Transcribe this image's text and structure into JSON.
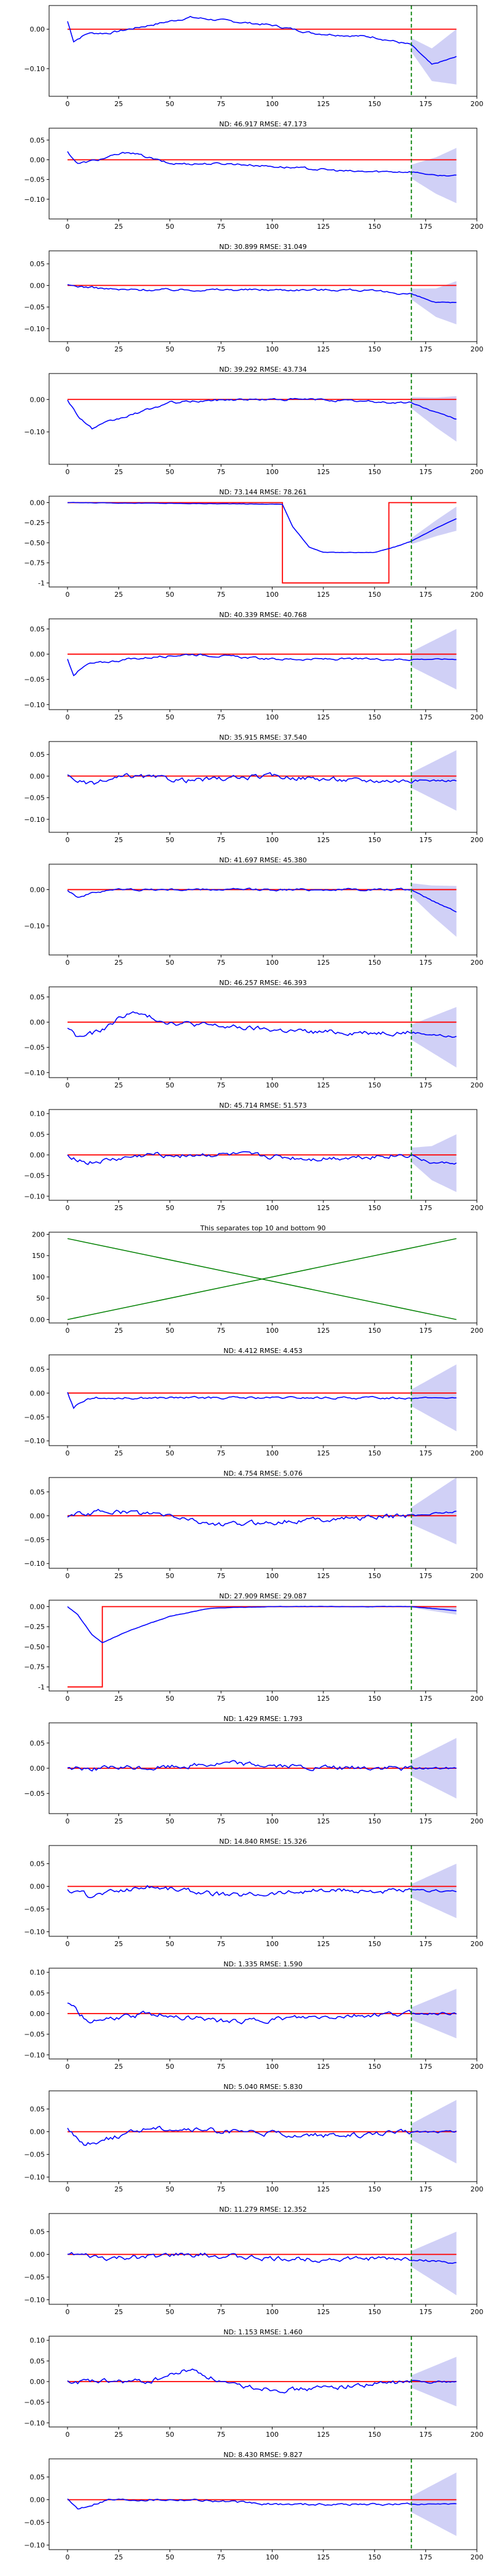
{
  "colors": {
    "forecast": "#0000ff",
    "interval": "#c8c8f5",
    "truth": "#ff0000",
    "split": "#008000",
    "divider_lines": "#008000"
  },
  "chart_data": [
    {
      "type": "line",
      "title": "",
      "xticks": [
        0,
        25,
        50,
        75,
        100,
        125,
        150,
        175,
        200
      ],
      "yticks": [
        0.0,
        -0.1
      ],
      "ylim": [
        -0.17,
        0.06
      ],
      "forecast_start": 168,
      "truth_level": 0.0,
      "interval_halfwidth": 0.07,
      "shape": "dip_end",
      "keypoints": [
        [
          0,
          0.02
        ],
        [
          3,
          -0.03
        ],
        [
          10,
          -0.01
        ],
        [
          20,
          -0.01
        ],
        [
          40,
          0.01
        ],
        [
          60,
          0.03
        ],
        [
          80,
          0.02
        ],
        [
          100,
          0.01
        ],
        [
          120,
          -0.01
        ],
        [
          150,
          -0.02
        ],
        [
          168,
          -0.04
        ],
        [
          178,
          -0.09
        ],
        [
          190,
          -0.07
        ]
      ]
    },
    {
      "type": "line",
      "title": "ND:  46.917 RMSE:  47.173",
      "xticks": [
        0,
        25,
        50,
        75,
        100,
        125,
        150,
        175,
        200
      ],
      "yticks": [
        0.05,
        0.0,
        -0.05,
        -0.1
      ],
      "ylim": [
        -0.15,
        0.08
      ],
      "forecast_start": 168,
      "truth_level": 0.0,
      "interval_halfwidth": 0.07,
      "shape": "wavy",
      "keypoints": [
        [
          0,
          0.02
        ],
        [
          5,
          -0.01
        ],
        [
          15,
          0.0
        ],
        [
          30,
          0.02
        ],
        [
          50,
          -0.01
        ],
        [
          80,
          -0.01
        ],
        [
          110,
          -0.02
        ],
        [
          140,
          -0.03
        ],
        [
          168,
          -0.03
        ],
        [
          180,
          -0.04
        ],
        [
          190,
          -0.04
        ]
      ]
    },
    {
      "type": "line",
      "title": "ND:  30.899 RMSE:  31.049",
      "xticks": [
        0,
        25,
        50,
        75,
        100,
        125,
        150,
        175,
        200
      ],
      "yticks": [
        0.05,
        0.0,
        -0.05,
        -0.1
      ],
      "ylim": [
        -0.13,
        0.08
      ],
      "forecast_start": 168,
      "truth_level": 0.0,
      "interval_halfwidth": 0.05,
      "shape": "flat",
      "keypoints": [
        [
          0,
          0.0
        ],
        [
          25,
          -0.01
        ],
        [
          60,
          -0.01
        ],
        [
          100,
          -0.01
        ],
        [
          140,
          -0.01
        ],
        [
          168,
          -0.02
        ],
        [
          180,
          -0.04
        ],
        [
          190,
          -0.04
        ]
      ]
    },
    {
      "type": "line",
      "title": "ND:  39.292 RMSE:  43.734",
      "xticks": [
        0,
        25,
        50,
        75,
        100,
        125,
        150,
        175,
        200
      ],
      "yticks": [
        0.0,
        -0.1
      ],
      "ylim": [
        -0.2,
        0.08
      ],
      "forecast_start": 168,
      "truth_level": 0.0,
      "interval_halfwidth": 0.07,
      "shape": "trough",
      "keypoints": [
        [
          0,
          0.0
        ],
        [
          5,
          -0.05
        ],
        [
          12,
          -0.09
        ],
        [
          20,
          -0.07
        ],
        [
          35,
          -0.04
        ],
        [
          50,
          -0.01
        ],
        [
          80,
          0.0
        ],
        [
          120,
          0.0
        ],
        [
          160,
          -0.01
        ],
        [
          168,
          -0.01
        ],
        [
          180,
          -0.04
        ],
        [
          190,
          -0.06
        ]
      ]
    },
    {
      "type": "line",
      "title": "ND:  73.144 RMSE:  78.261",
      "xticks": [
        0,
        25,
        50,
        75,
        100,
        125,
        150,
        175,
        200
      ],
      "yticks": [
        0.0,
        -0.25,
        -0.5,
        -0.75,
        -1.0
      ],
      "ylim": [
        -1.05,
        0.08
      ],
      "forecast_start": 168,
      "truth_steps": [
        [
          0,
          0.0
        ],
        [
          105,
          0.0
        ],
        [
          105,
          -1.0
        ],
        [
          157,
          -1.0
        ],
        [
          157,
          0.0
        ],
        [
          168,
          0.0
        ]
      ],
      "interval_halfwidth": 0.15,
      "shape": "step",
      "keypoints": [
        [
          0,
          0.0
        ],
        [
          105,
          -0.02
        ],
        [
          110,
          -0.3
        ],
        [
          118,
          -0.55
        ],
        [
          125,
          -0.62
        ],
        [
          150,
          -0.62
        ],
        [
          160,
          -0.55
        ],
        [
          168,
          -0.48
        ],
        [
          180,
          -0.32
        ],
        [
          190,
          -0.2
        ]
      ]
    },
    {
      "type": "line",
      "title": "ND:  40.339 RMSE:  40.768",
      "xticks": [
        0,
        25,
        50,
        75,
        100,
        125,
        150,
        175,
        200
      ],
      "yticks": [
        0.05,
        0.0,
        -0.05,
        -0.1
      ],
      "ylim": [
        -0.11,
        0.07
      ],
      "forecast_start": 168,
      "truth_level": 0.0,
      "interval_halfwidth": 0.06,
      "shape": "flat",
      "keypoints": [
        [
          0,
          -0.01
        ],
        [
          3,
          -0.04
        ],
        [
          10,
          -0.02
        ],
        [
          30,
          -0.01
        ],
        [
          60,
          0.0
        ],
        [
          100,
          -0.01
        ],
        [
          130,
          -0.01
        ],
        [
          168,
          -0.01
        ],
        [
          190,
          -0.01
        ]
      ]
    },
    {
      "type": "line",
      "title": "ND:  35.915 RMSE:  37.540",
      "xticks": [
        0,
        25,
        50,
        75,
        100,
        125,
        150,
        175,
        200
      ],
      "yticks": [
        0.05,
        0.0,
        -0.05,
        -0.1
      ],
      "ylim": [
        -0.13,
        0.08
      ],
      "forecast_start": 168,
      "truth_level": 0.0,
      "interval_halfwidth": 0.07,
      "shape": "noisy",
      "keypoints": [
        [
          0,
          0.0
        ],
        [
          10,
          -0.02
        ],
        [
          30,
          0.0
        ],
        [
          60,
          -0.01
        ],
        [
          100,
          0.0
        ],
        [
          140,
          -0.01
        ],
        [
          168,
          -0.01
        ],
        [
          190,
          -0.01
        ]
      ]
    },
    {
      "type": "line",
      "title": "ND:  41.697 RMSE:  45.380",
      "xticks": [
        0,
        25,
        50,
        75,
        100,
        125,
        150,
        175,
        200
      ],
      "yticks": [
        0.0,
        -0.1
      ],
      "ylim": [
        -0.18,
        0.07
      ],
      "forecast_start": 168,
      "truth_level": 0.0,
      "interval_halfwidth": 0.07,
      "shape": "flat",
      "keypoints": [
        [
          0,
          0.0
        ],
        [
          5,
          -0.02
        ],
        [
          20,
          0.0
        ],
        [
          60,
          0.0
        ],
        [
          100,
          0.0
        ],
        [
          140,
          0.0
        ],
        [
          168,
          0.0
        ],
        [
          178,
          -0.03
        ],
        [
          190,
          -0.06
        ]
      ]
    },
    {
      "type": "line",
      "title": "ND:  46.257 RMSE:  46.393",
      "xticks": [
        0,
        25,
        50,
        75,
        100,
        125,
        150,
        175,
        200
      ],
      "yticks": [
        0.05,
        0.0,
        -0.05,
        -0.1
      ],
      "ylim": [
        -0.11,
        0.07
      ],
      "forecast_start": 168,
      "truth_level": 0.0,
      "interval_halfwidth": 0.06,
      "shape": "noisy",
      "keypoints": [
        [
          0,
          -0.01
        ],
        [
          5,
          -0.03
        ],
        [
          15,
          -0.02
        ],
        [
          30,
          0.02
        ],
        [
          50,
          0.0
        ],
        [
          80,
          -0.01
        ],
        [
          120,
          -0.02
        ],
        [
          168,
          -0.02
        ],
        [
          190,
          -0.03
        ]
      ]
    },
    {
      "type": "line",
      "title": "ND:  45.714 RMSE:  51.573",
      "xticks": [
        0,
        25,
        50,
        75,
        100,
        125,
        150,
        175,
        200
      ],
      "yticks": [
        0.1,
        0.05,
        0.0,
        -0.05,
        -0.1
      ],
      "ylim": [
        -0.11,
        0.11
      ],
      "forecast_start": 168,
      "truth_level": 0.0,
      "interval_halfwidth": 0.07,
      "shape": "noisy",
      "keypoints": [
        [
          0,
          0.0
        ],
        [
          10,
          -0.02
        ],
        [
          40,
          0.0
        ],
        [
          80,
          0.0
        ],
        [
          120,
          -0.01
        ],
        [
          168,
          0.0
        ],
        [
          178,
          -0.02
        ],
        [
          190,
          -0.02
        ]
      ]
    },
    {
      "type": "line",
      "title": "This separates top 10 and bottom 90",
      "xticks": [
        0,
        25,
        50,
        75,
        100,
        125,
        150,
        175,
        200
      ],
      "yticks": [
        200,
        150,
        100,
        50,
        0
      ],
      "ylim": [
        -8,
        205
      ],
      "divider": true,
      "lines": [
        [
          [
            0,
            0
          ],
          [
            190,
            190
          ]
        ],
        [
          [
            0,
            190
          ],
          [
            190,
            0
          ]
        ]
      ]
    },
    {
      "type": "line",
      "title": "ND:  4.412 RMSE:  4.453",
      "xticks": [
        0,
        25,
        50,
        75,
        100,
        125,
        150,
        175,
        200
      ],
      "yticks": [
        0.05,
        0.0,
        -0.05,
        -0.1
      ],
      "ylim": [
        -0.11,
        0.08
      ],
      "forecast_start": 168,
      "truth_level": 0.0,
      "interval_halfwidth": 0.07,
      "shape": "flat",
      "keypoints": [
        [
          0,
          0.0
        ],
        [
          3,
          -0.03
        ],
        [
          10,
          -0.01
        ],
        [
          40,
          -0.01
        ],
        [
          100,
          -0.01
        ],
        [
          168,
          -0.01
        ],
        [
          190,
          -0.01
        ]
      ]
    },
    {
      "type": "line",
      "title": "ND:  4.754 RMSE:  5.076",
      "xticks": [
        0,
        25,
        50,
        75,
        100,
        125,
        150,
        175,
        200
      ],
      "yticks": [
        0.05,
        0.0,
        -0.05,
        -0.1
      ],
      "ylim": [
        -0.11,
        0.08
      ],
      "forecast_start": 168,
      "truth_level": 0.0,
      "interval_halfwidth": 0.07,
      "shape": "noisy",
      "keypoints": [
        [
          0,
          0.0
        ],
        [
          20,
          0.01
        ],
        [
          50,
          0.0
        ],
        [
          75,
          -0.02
        ],
        [
          110,
          -0.01
        ],
        [
          168,
          0.0
        ],
        [
          190,
          0.01
        ]
      ]
    },
    {
      "type": "line",
      "title": "ND:  27.909 RMSE:  29.087",
      "xticks": [
        0,
        25,
        50,
        75,
        100,
        125,
        150,
        175,
        200
      ],
      "yticks": [
        0.0,
        -0.25,
        -0.5,
        -0.75,
        -1.0
      ],
      "ylim": [
        -1.05,
        0.08
      ],
      "forecast_start": 168,
      "truth_steps": [
        [
          0,
          -1.0
        ],
        [
          17,
          -1.0
        ],
        [
          17,
          0.0
        ],
        [
          168,
          0.0
        ]
      ],
      "interval_halfwidth": 0.05,
      "shape": "step",
      "keypoints": [
        [
          0,
          0.0
        ],
        [
          5,
          -0.1
        ],
        [
          12,
          -0.35
        ],
        [
          17,
          -0.45
        ],
        [
          30,
          -0.3
        ],
        [
          50,
          -0.12
        ],
        [
          70,
          -0.02
        ],
        [
          100,
          0.0
        ],
        [
          168,
          0.0
        ],
        [
          190,
          -0.05
        ]
      ]
    },
    {
      "type": "line",
      "title": "ND:  1.429 RMSE:  1.793",
      "xticks": [
        0,
        25,
        50,
        75,
        100,
        125,
        150,
        175,
        200
      ],
      "yticks": [
        0.05,
        0.0,
        -0.05
      ],
      "ylim": [
        -0.09,
        0.09
      ],
      "forecast_start": 168,
      "truth_level": 0.0,
      "interval_halfwidth": 0.06,
      "shape": "noisy",
      "keypoints": [
        [
          0,
          0.0
        ],
        [
          40,
          0.0
        ],
        [
          80,
          0.01
        ],
        [
          120,
          0.0
        ],
        [
          168,
          0.0
        ],
        [
          190,
          0.0
        ]
      ]
    },
    {
      "type": "line",
      "title": "ND:  14.840 RMSE:  15.326",
      "xticks": [
        0,
        25,
        50,
        75,
        100,
        125,
        150,
        175,
        200
      ],
      "yticks": [
        0.05,
        0.0,
        -0.05,
        -0.1
      ],
      "ylim": [
        -0.11,
        0.09
      ],
      "forecast_start": 168,
      "truth_level": 0.0,
      "interval_halfwidth": 0.06,
      "shape": "noisy",
      "keypoints": [
        [
          0,
          -0.01
        ],
        [
          10,
          -0.02
        ],
        [
          40,
          0.0
        ],
        [
          80,
          -0.02
        ],
        [
          120,
          -0.01
        ],
        [
          168,
          -0.01
        ],
        [
          190,
          -0.01
        ]
      ]
    },
    {
      "type": "line",
      "title": "ND:  1.335 RMSE:  1.590",
      "xticks": [
        0,
        25,
        50,
        75,
        100,
        125,
        150,
        175,
        200
      ],
      "yticks": [
        0.1,
        0.05,
        0.0,
        -0.05,
        -0.1
      ],
      "ylim": [
        -0.11,
        0.11
      ],
      "forecast_start": 168,
      "truth_level": 0.0,
      "interval_halfwidth": 0.06,
      "shape": "noisy",
      "keypoints": [
        [
          0,
          0.03
        ],
        [
          10,
          -0.02
        ],
        [
          40,
          0.0
        ],
        [
          80,
          -0.02
        ],
        [
          120,
          -0.01
        ],
        [
          168,
          0.0
        ],
        [
          190,
          0.0
        ]
      ]
    },
    {
      "type": "line",
      "title": "ND:  5.040 RMSE:  5.830",
      "xticks": [
        0,
        25,
        50,
        75,
        100,
        125,
        150,
        175,
        200
      ],
      "yticks": [
        0.05,
        0.0,
        -0.05,
        -0.1
      ],
      "ylim": [
        -0.11,
        0.09
      ],
      "forecast_start": 168,
      "truth_level": 0.0,
      "interval_halfwidth": 0.07,
      "shape": "noisy",
      "keypoints": [
        [
          0,
          0.01
        ],
        [
          8,
          -0.03
        ],
        [
          40,
          0.01
        ],
        [
          80,
          0.0
        ],
        [
          130,
          -0.01
        ],
        [
          168,
          0.0
        ],
        [
          190,
          0.0
        ]
      ]
    },
    {
      "type": "line",
      "title": "ND:  11.279 RMSE:  12.352",
      "xticks": [
        0,
        25,
        50,
        75,
        100,
        125,
        150,
        175,
        200
      ],
      "yticks": [
        0.05,
        0.0,
        -0.05,
        -0.1
      ],
      "ylim": [
        -0.11,
        0.09
      ],
      "forecast_start": 168,
      "truth_level": 0.0,
      "interval_halfwidth": 0.07,
      "shape": "noisy",
      "keypoints": [
        [
          0,
          0.0
        ],
        [
          20,
          -0.01
        ],
        [
          60,
          0.0
        ],
        [
          100,
          -0.01
        ],
        [
          168,
          -0.01
        ],
        [
          190,
          -0.02
        ]
      ]
    },
    {
      "type": "line",
      "title": "ND:  1.153 RMSE:  1.460",
      "xticks": [
        0,
        25,
        50,
        75,
        100,
        125,
        150,
        175,
        200
      ],
      "yticks": [
        0.1,
        0.05,
        0.0,
        -0.05,
        -0.1
      ],
      "ylim": [
        -0.11,
        0.11
      ],
      "forecast_start": 168,
      "truth_level": 0.0,
      "interval_halfwidth": 0.06,
      "shape": "noisy",
      "keypoints": [
        [
          0,
          0.0
        ],
        [
          40,
          0.0
        ],
        [
          60,
          0.03
        ],
        [
          80,
          -0.01
        ],
        [
          110,
          -0.02
        ],
        [
          168,
          0.0
        ],
        [
          190,
          0.0
        ]
      ]
    },
    {
      "type": "line",
      "title": "ND:  8.430 RMSE:  9.827",
      "xticks": [
        0,
        25,
        50,
        75,
        100,
        125,
        150,
        175,
        200
      ],
      "yticks": [
        0.05,
        0.0,
        -0.05,
        -0.1
      ],
      "ylim": [
        -0.11,
        0.09
      ],
      "forecast_start": 168,
      "truth_level": 0.0,
      "interval_halfwidth": 0.07,
      "shape": "flat",
      "keypoints": [
        [
          0,
          0.0
        ],
        [
          5,
          -0.02
        ],
        [
          20,
          0.0
        ],
        [
          60,
          0.0
        ],
        [
          100,
          -0.01
        ],
        [
          168,
          -0.01
        ],
        [
          190,
          -0.01
        ]
      ]
    }
  ]
}
